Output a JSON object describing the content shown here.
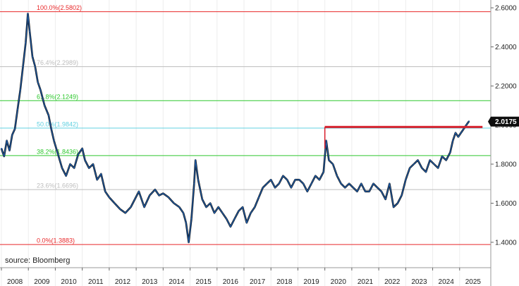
{
  "chart_data": {
    "type": "line",
    "source": "source: Bloomberg",
    "x_tick_labels": [
      "2008",
      "2009",
      "2010",
      "2011",
      "2012",
      "2013",
      "2014",
      "2015",
      "2016",
      "2017",
      "2018",
      "2019",
      "2020",
      "2021",
      "2022",
      "2023",
      "2024",
      "2025"
    ],
    "y_tick_labels": [
      "1.4000",
      "1.6000",
      "1.8000",
      "2.0000",
      "2.2000",
      "2.4000",
      "2.6000"
    ],
    "ylim": [
      1.27,
      2.64
    ],
    "last_value_label": "2.0175",
    "last_value": 2.0175,
    "fib_levels": [
      {
        "label": "100.0%(2.5802)",
        "value": 2.5802,
        "color": "#e8282a"
      },
      {
        "label": "76.4%(2.2989)",
        "value": 2.2989,
        "color": "#bdbdbd"
      },
      {
        "label": "61.8%(2.1249)",
        "value": 2.1249,
        "color": "#2ec82e"
      },
      {
        "label": "50.0%(1.9842)",
        "value": 1.9842,
        "color": "#60d0e0"
      },
      {
        "label": "38.2%(1.8436)",
        "value": 1.8436,
        "color": "#2ec82e"
      },
      {
        "label": "23.6%(1.6696)",
        "value": 1.6696,
        "color": "#bdbdbd"
      },
      {
        "label": "0.0%(1.3883)",
        "value": 1.3883,
        "color": "#e8282a"
      }
    ],
    "resistance": {
      "x_start": 2020.0,
      "x_end": 2025.85,
      "value": 1.99,
      "color": "#d81e2a"
    },
    "series": [
      {
        "color": "#1f5fae",
        "points": [
          [
            2008.0,
            1.88
          ],
          [
            2008.1,
            1.84
          ],
          [
            2008.2,
            1.92
          ],
          [
            2008.3,
            1.87
          ],
          [
            2008.4,
            1.95
          ],
          [
            2008.5,
            1.98
          ],
          [
            2008.6,
            2.08
          ],
          [
            2008.7,
            2.18
          ],
          [
            2008.8,
            2.3
          ],
          [
            2008.9,
            2.42
          ],
          [
            2008.98,
            2.57
          ],
          [
            2009.05,
            2.48
          ],
          [
            2009.15,
            2.35
          ],
          [
            2009.25,
            2.3
          ],
          [
            2009.35,
            2.22
          ],
          [
            2009.45,
            2.18
          ],
          [
            2009.6,
            2.1
          ],
          [
            2009.75,
            2.05
          ],
          [
            2009.85,
            1.98
          ],
          [
            2009.95,
            1.92
          ],
          [
            2010.1,
            1.85
          ],
          [
            2010.25,
            1.78
          ],
          [
            2010.4,
            1.74
          ],
          [
            2010.55,
            1.8
          ],
          [
            2010.7,
            1.78
          ],
          [
            2010.85,
            1.85
          ],
          [
            2011.0,
            1.88
          ],
          [
            2011.1,
            1.82
          ],
          [
            2011.25,
            1.78
          ],
          [
            2011.4,
            1.8
          ],
          [
            2011.55,
            1.72
          ],
          [
            2011.7,
            1.75
          ],
          [
            2011.85,
            1.66
          ],
          [
            2012.0,
            1.63
          ],
          [
            2012.2,
            1.6
          ],
          [
            2012.4,
            1.57
          ],
          [
            2012.6,
            1.55
          ],
          [
            2012.8,
            1.58
          ],
          [
            2012.95,
            1.62
          ],
          [
            2013.1,
            1.66
          ],
          [
            2013.3,
            1.58
          ],
          [
            2013.5,
            1.64
          ],
          [
            2013.7,
            1.67
          ],
          [
            2013.85,
            1.64
          ],
          [
            2014.0,
            1.65
          ],
          [
            2014.2,
            1.63
          ],
          [
            2014.4,
            1.6
          ],
          [
            2014.6,
            1.58
          ],
          [
            2014.75,
            1.55
          ],
          [
            2014.85,
            1.5
          ],
          [
            2014.95,
            1.4
          ],
          [
            2015.05,
            1.52
          ],
          [
            2015.15,
            1.7
          ],
          [
            2015.2,
            1.82
          ],
          [
            2015.3,
            1.72
          ],
          [
            2015.45,
            1.62
          ],
          [
            2015.6,
            1.58
          ],
          [
            2015.75,
            1.6
          ],
          [
            2015.9,
            1.55
          ],
          [
            2016.05,
            1.58
          ],
          [
            2016.2,
            1.55
          ],
          [
            2016.35,
            1.52
          ],
          [
            2016.5,
            1.48
          ],
          [
            2016.65,
            1.52
          ],
          [
            2016.8,
            1.56
          ],
          [
            2016.95,
            1.58
          ],
          [
            2017.1,
            1.5
          ],
          [
            2017.25,
            1.55
          ],
          [
            2017.4,
            1.58
          ],
          [
            2017.55,
            1.63
          ],
          [
            2017.7,
            1.68
          ],
          [
            2017.85,
            1.7
          ],
          [
            2018.0,
            1.72
          ],
          [
            2018.15,
            1.68
          ],
          [
            2018.3,
            1.7
          ],
          [
            2018.45,
            1.74
          ],
          [
            2018.6,
            1.72
          ],
          [
            2018.75,
            1.68
          ],
          [
            2018.9,
            1.72
          ],
          [
            2019.05,
            1.72
          ],
          [
            2019.2,
            1.7
          ],
          [
            2019.35,
            1.66
          ],
          [
            2019.5,
            1.7
          ],
          [
            2019.65,
            1.74
          ],
          [
            2019.8,
            1.72
          ],
          [
            2019.95,
            1.76
          ],
          [
            2020.05,
            1.92
          ],
          [
            2020.15,
            1.82
          ],
          [
            2020.3,
            1.8
          ],
          [
            2020.45,
            1.74
          ],
          [
            2020.6,
            1.7
          ],
          [
            2020.75,
            1.68
          ],
          [
            2020.9,
            1.7
          ],
          [
            2021.05,
            1.68
          ],
          [
            2021.2,
            1.66
          ],
          [
            2021.35,
            1.7
          ],
          [
            2021.5,
            1.66
          ],
          [
            2021.65,
            1.66
          ],
          [
            2021.8,
            1.7
          ],
          [
            2021.95,
            1.68
          ],
          [
            2022.1,
            1.66
          ],
          [
            2022.25,
            1.62
          ],
          [
            2022.4,
            1.7
          ],
          [
            2022.55,
            1.58
          ],
          [
            2022.7,
            1.6
          ],
          [
            2022.85,
            1.64
          ],
          [
            2023.0,
            1.72
          ],
          [
            2023.15,
            1.78
          ],
          [
            2023.3,
            1.8
          ],
          [
            2023.45,
            1.82
          ],
          [
            2023.6,
            1.78
          ],
          [
            2023.75,
            1.76
          ],
          [
            2023.9,
            1.82
          ],
          [
            2024.05,
            1.8
          ],
          [
            2024.2,
            1.78
          ],
          [
            2024.35,
            1.84
          ],
          [
            2024.5,
            1.82
          ],
          [
            2024.65,
            1.86
          ],
          [
            2024.75,
            1.92
          ],
          [
            2024.85,
            1.96
          ],
          [
            2024.95,
            1.94
          ],
          [
            2025.05,
            1.96
          ],
          [
            2025.15,
            1.98
          ],
          [
            2025.25,
            2.0
          ],
          [
            2025.35,
            2.02
          ]
        ]
      }
    ]
  }
}
